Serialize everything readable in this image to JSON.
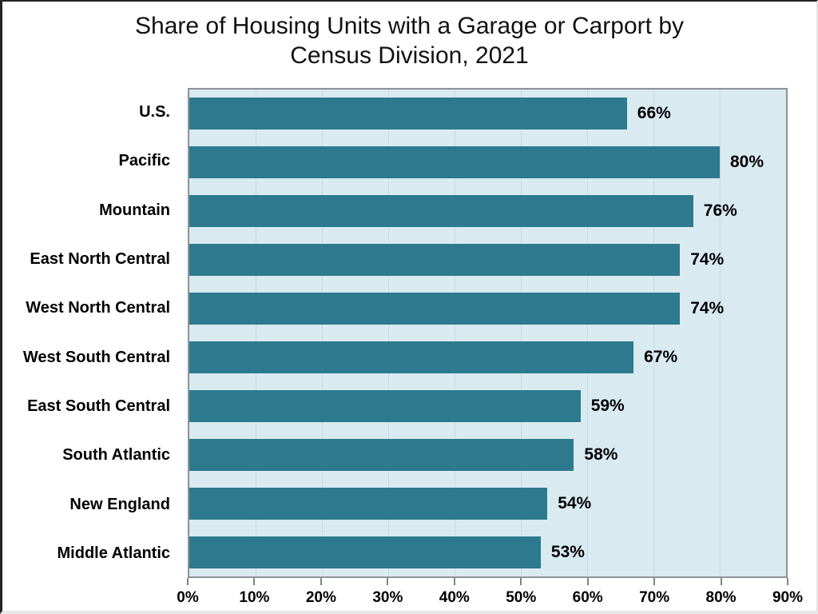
{
  "chart_data": {
    "type": "bar",
    "orientation": "horizontal",
    "title": "Share of Housing Units with a Garage or Carport by Census Division, 2021",
    "categories": [
      "U.S.",
      "Pacific",
      "Mountain",
      "East North Central",
      "West North Central",
      "West South Central",
      "East South Central",
      "South Atlantic",
      "New England",
      "Middle Atlantic"
    ],
    "values": [
      66,
      80,
      76,
      74,
      74,
      67,
      59,
      58,
      54,
      53
    ],
    "data_labels": [
      "66%",
      "80%",
      "76%",
      "74%",
      "74%",
      "67%",
      "59%",
      "58%",
      "54%",
      "53%"
    ],
    "xlabel": "",
    "ylabel": "",
    "xlim": [
      0,
      90
    ],
    "x_tick_step": 10,
    "x_tick_labels": [
      "0%",
      "10%",
      "20%",
      "30%",
      "40%",
      "50%",
      "60%",
      "70%",
      "80%",
      "90%"
    ],
    "grid": "vertical",
    "legend": "none",
    "colors": {
      "bar": "#2D7A8E",
      "plot_background": "#D9EAF1",
      "gridline": "#C8DBE4",
      "plot_border": "#8C9396",
      "tick": "#7F8487",
      "label_text": "#000000",
      "title_text": "#111111"
    }
  }
}
